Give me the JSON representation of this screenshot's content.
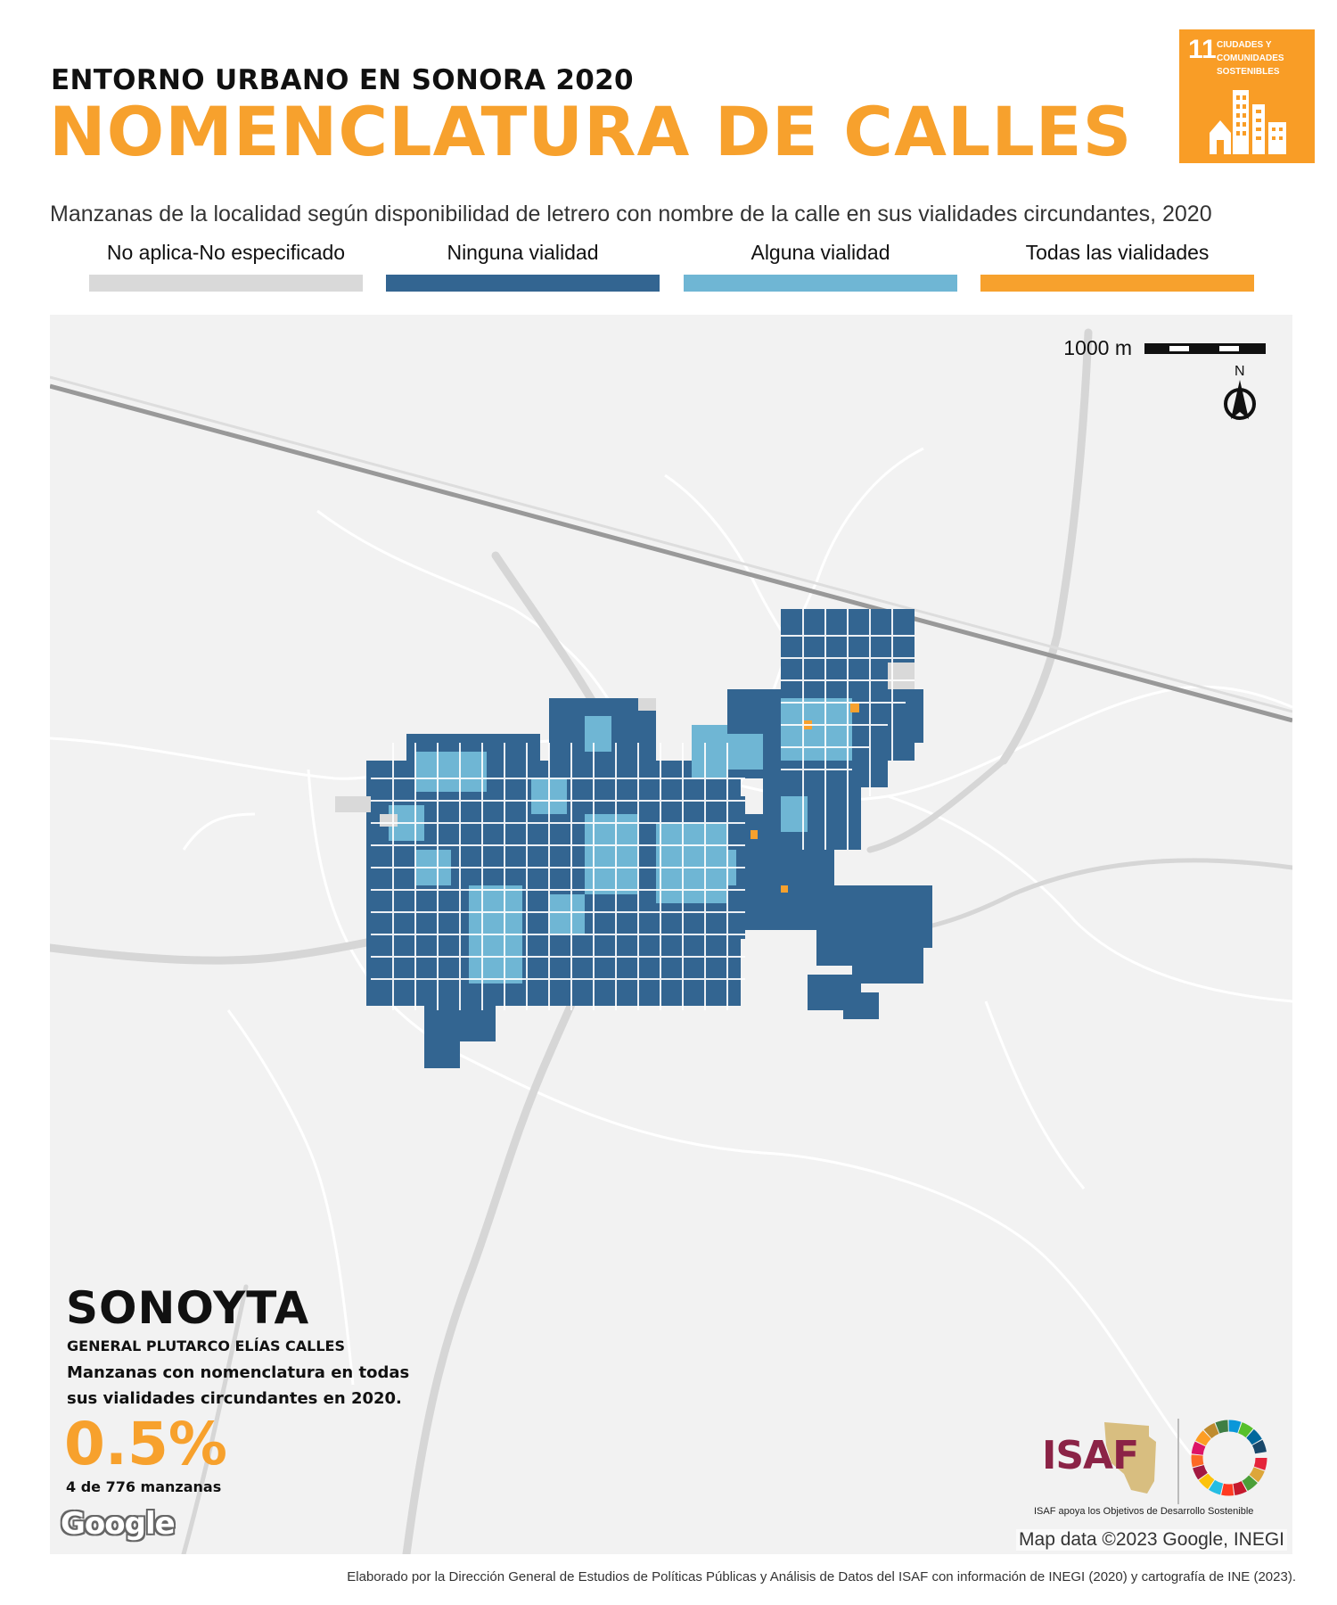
{
  "header": {
    "kicker": "ENTORNO URBANO EN SONORA 2020",
    "title": "NOMENCLATURA DE CALLES",
    "subtitle": "Manzanas de la localidad según disponibilidad de letrero con nombre de la calle en sus vialidades circundantes, 2020"
  },
  "sdg_badge": {
    "number": "11",
    "text_line1": "CIUDADES Y",
    "text_line2": "COMUNIDADES",
    "text_line3": "SOSTENIBLES",
    "color": "#F99D26"
  },
  "legend": [
    {
      "label": "No aplica-No especificado",
      "color": "#D9D9D9"
    },
    {
      "label": "Ninguna vialidad",
      "color": "#336591"
    },
    {
      "label": "Alguna vialidad",
      "color": "#6FB6D4"
    },
    {
      "label": "Todas las vialidades",
      "color": "#F7A12D"
    }
  ],
  "map": {
    "scale_label": "1000 m",
    "north_label": "N",
    "city_name": "SONOYTA",
    "municipality": "GENERAL PLUTARCO ELÍAS CALLES",
    "indicator_text": "Manzanas con nomenclatura en todas sus vialidades circundantes en 2020.",
    "percentage": "0.5%",
    "count": "4 de 776 manzanas",
    "google_logo": "Google",
    "credit": "Map data ©2023 Google, INEGI"
  },
  "logos": {
    "isaf": "ISAF",
    "isaf_caption": "ISAF apoya los Objetivos de Desarrollo Sostenible"
  },
  "footer": "Elaborado por la Dirección General de Estudios de Políticas Públicas y Análisis de Datos del ISAF con información de INEGI (2020) y cartografía de INE (2023)."
}
